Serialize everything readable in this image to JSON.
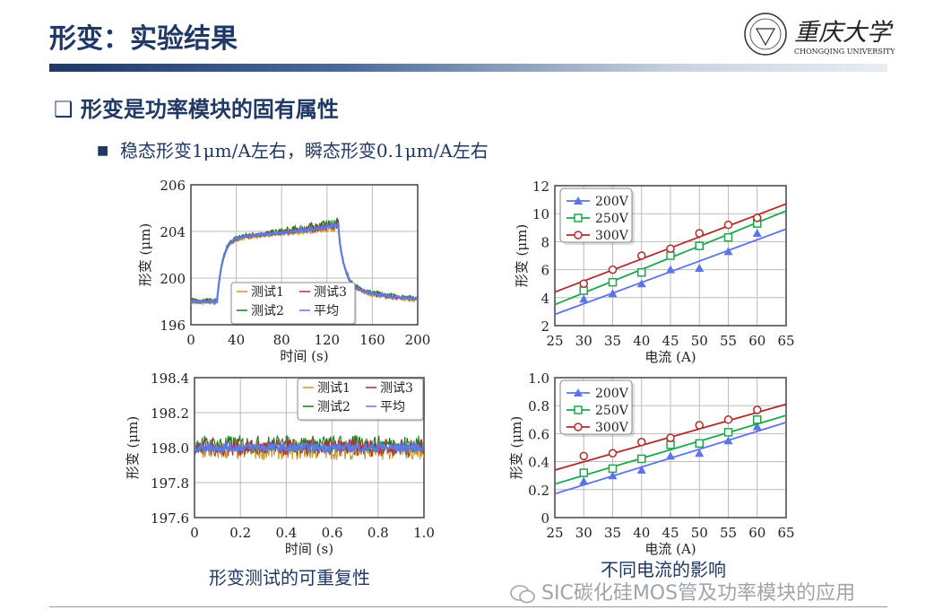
{
  "header": {
    "title": "形变：实验结果",
    "logo_text_cn": "重庆大学",
    "logo_text_en": "CHONGQING UNIVERSITY"
  },
  "bullets": {
    "main": "形变是功率模块的固有属性",
    "sub_prefix": "稳态形变",
    "sub_v1": "1μm/A",
    "sub_mid": "左右，瞬态形变",
    "sub_v2": "0.1μm/A",
    "sub_suffix": "左右"
  },
  "captions": {
    "left": "形变测试的可重复性",
    "right": "不同电流的影响"
  },
  "watermark": "SIC碳化硅MOS管及功率模块的应用",
  "colors": {
    "test1": "#c8962a",
    "test2": "#1a7a1a",
    "test3": "#b03030",
    "avg": "#5b7be0",
    "v200": "#5b74e8",
    "v250": "#1aa84a",
    "v300": "#b02a2a",
    "title": "#1f3864"
  },
  "chart_data": [
    {
      "type": "line",
      "xlabel": "时间 (s)",
      "ylabel": "形变 (μm)",
      "xlim": [
        0,
        200
      ],
      "xticks": [
        "0",
        "40",
        "80",
        "120",
        "160",
        "200"
      ],
      "yticks": [
        "196",
        "200",
        "204",
        "206"
      ],
      "grid": true,
      "legend": "bottom-center",
      "series": [
        {
          "name": "测试1"
        },
        {
          "name": "测试2"
        },
        {
          "name": "测试3"
        },
        {
          "name": "平均"
        }
      ],
      "profile": {
        "baseline": 198.0,
        "step_on_s": 23,
        "step_off_s": 130,
        "plateau_start": 203.4,
        "plateau_end": 204.3,
        "end_value": 198.0
      }
    },
    {
      "type": "line",
      "xlabel": "时间 (s)",
      "ylabel": "形变 (μm)",
      "xlim": [
        0,
        1.0
      ],
      "ylim": [
        197.6,
        198.4
      ],
      "xticks": [
        "0",
        "0.2",
        "0.4",
        "0.6",
        "0.8",
        "1.0"
      ],
      "yticks": [
        "197.6",
        "197.8",
        "198.0",
        "198.2",
        "198.4"
      ],
      "grid": true,
      "legend": "top-right",
      "series": [
        {
          "name": "测试1"
        },
        {
          "name": "测试2"
        },
        {
          "name": "测试3"
        },
        {
          "name": "平均"
        }
      ],
      "profile": {
        "mean": 198.0,
        "noise_amplitude": 0.05
      }
    },
    {
      "type": "scatter",
      "xlabel": "电流 (A)",
      "ylabel": "形变 (μm)",
      "xlim": [
        25,
        65
      ],
      "ylim": [
        2,
        12
      ],
      "xticks": [
        "25",
        "30",
        "35",
        "40",
        "45",
        "50",
        "55",
        "60",
        "65"
      ],
      "yticks": [
        "2",
        "4",
        "6",
        "8",
        "10",
        "12"
      ],
      "grid": true,
      "legend": "top-left",
      "x": [
        30,
        35,
        40,
        45,
        50,
        55,
        60
      ],
      "series": [
        {
          "name": "200V",
          "values": [
            3.9,
            4.3,
            5.0,
            6.0,
            6.1,
            7.3,
            8.6
          ],
          "fit": [
            2.8,
            8.9
          ]
        },
        {
          "name": "250V",
          "values": [
            4.5,
            5.1,
            5.8,
            7.0,
            7.7,
            8.3,
            9.3
          ],
          "fit": [
            3.5,
            10.2
          ]
        },
        {
          "name": "300V",
          "values": [
            5.0,
            6.0,
            7.0,
            7.5,
            8.6,
            9.2,
            9.7
          ],
          "fit": [
            4.4,
            10.7
          ]
        }
      ]
    },
    {
      "type": "scatter",
      "xlabel": "电流 (A)",
      "ylabel": "形变 (μm)",
      "xlim": [
        25,
        65
      ],
      "ylim": [
        0,
        1.0
      ],
      "xticks": [
        "25",
        "30",
        "35",
        "40",
        "45",
        "50",
        "55",
        "60",
        "65"
      ],
      "yticks": [
        "0",
        "0.2",
        "0.4",
        "0.6",
        "0.8",
        "1.0"
      ],
      "grid": true,
      "legend": "top-left",
      "x": [
        30,
        35,
        40,
        45,
        50,
        55,
        60
      ],
      "series": [
        {
          "name": "200V",
          "values": [
            0.26,
            0.3,
            0.34,
            0.44,
            0.46,
            0.55,
            0.65
          ],
          "fit": [
            0.17,
            0.68
          ]
        },
        {
          "name": "250V",
          "values": [
            0.32,
            0.35,
            0.42,
            0.52,
            0.53,
            0.61,
            0.7
          ],
          "fit": [
            0.24,
            0.73
          ]
        },
        {
          "name": "300V",
          "values": [
            0.44,
            0.46,
            0.54,
            0.57,
            0.66,
            0.7,
            0.77
          ],
          "fit": [
            0.34,
            0.81
          ]
        }
      ]
    }
  ]
}
